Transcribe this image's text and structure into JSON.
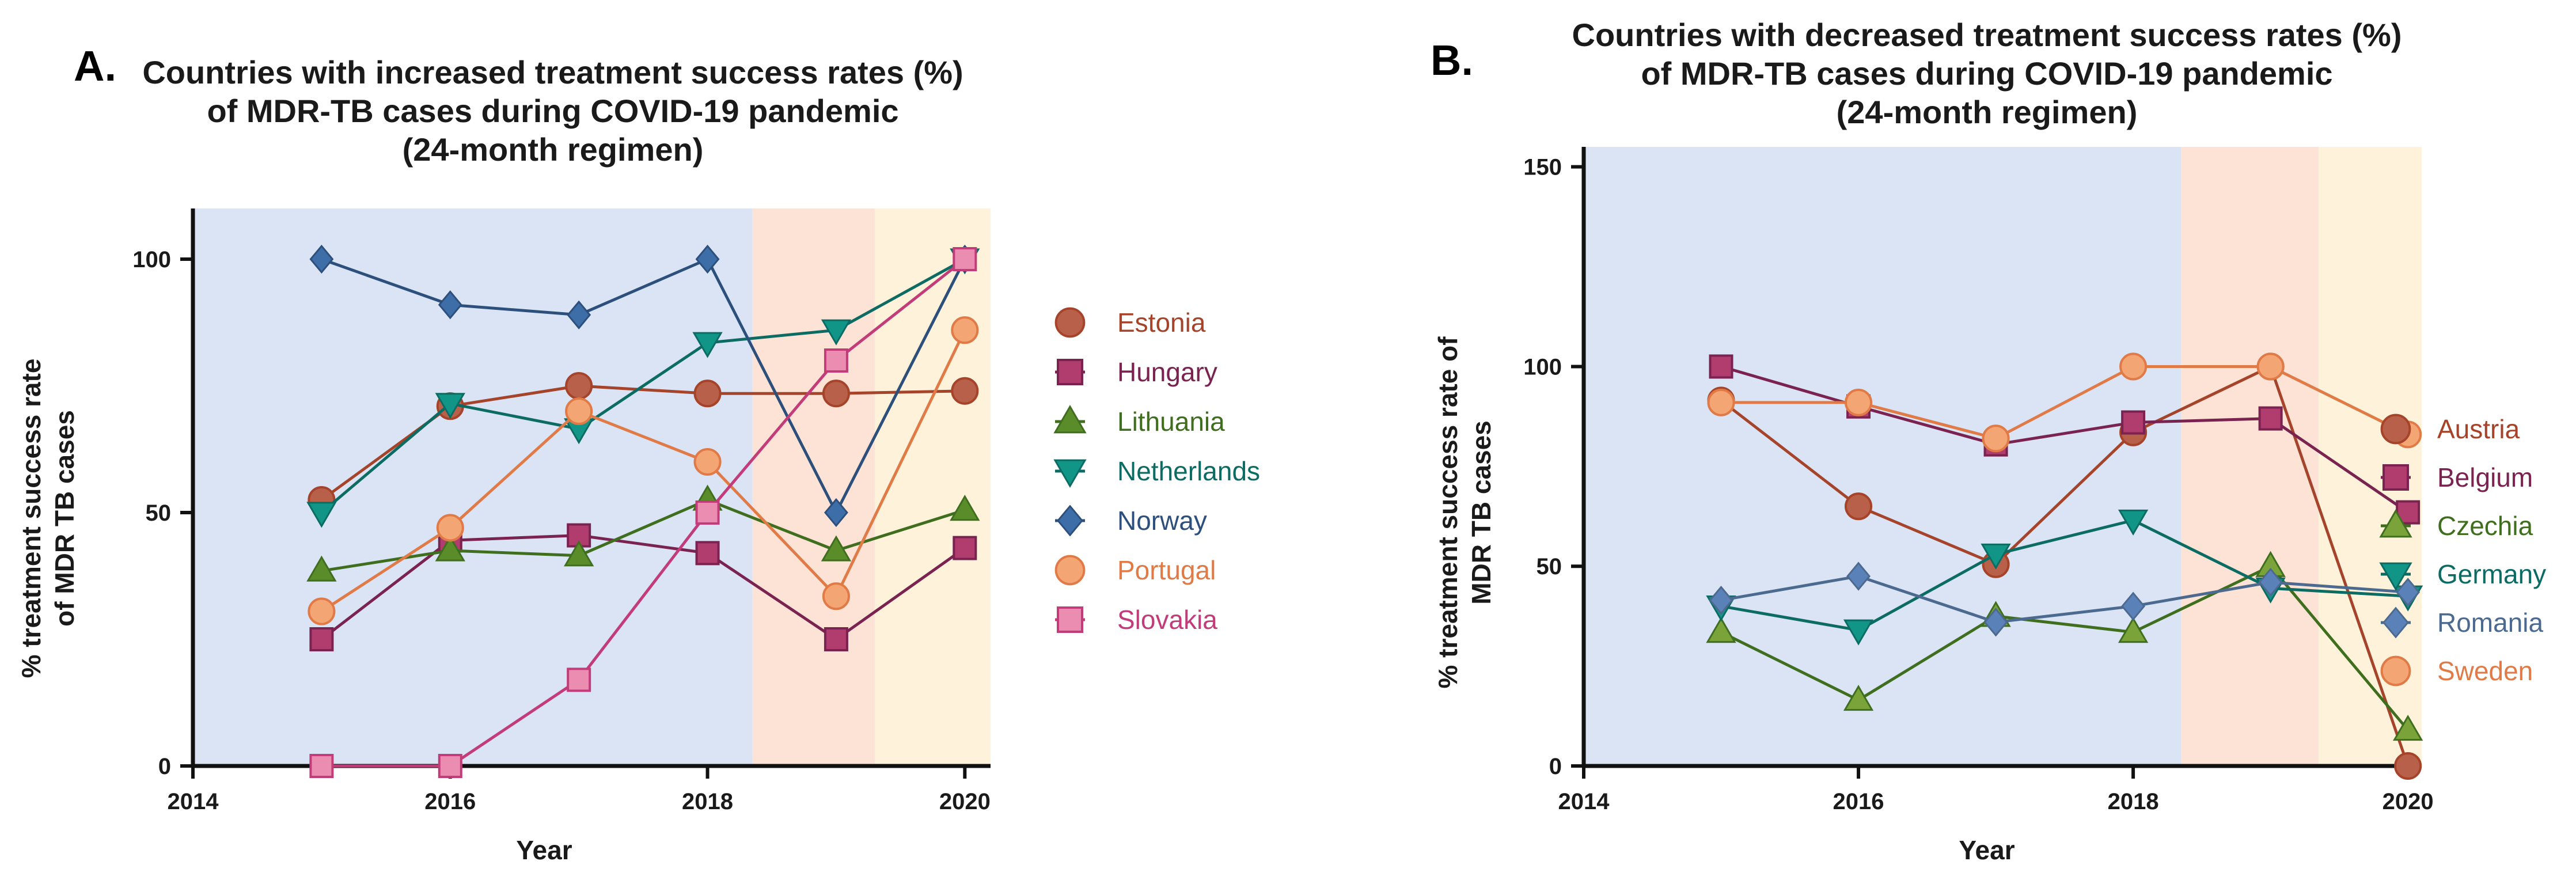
{
  "chart_data": [
    {
      "panel_label": "A.",
      "type": "line",
      "title": [
        "Countries with increased treatment success rates (%)",
        "of MDR-TB cases during COVID-19 pandemic",
        "(24-month regimen)"
      ],
      "xlabel": "Year",
      "ylabel": [
        "% treatment success rate",
        "of MDR TB cases"
      ],
      "xlim": [
        2014,
        2020.2
      ],
      "ylim": [
        0,
        110
      ],
      "xticks": [
        2014,
        2016,
        2018,
        2020
      ],
      "yticks": [
        0,
        50,
        100
      ],
      "background_bands": [
        {
          "x": [
            2014,
            2018.35
          ],
          "color": "#dae4f5"
        },
        {
          "x": [
            2018.35,
            2019.3
          ],
          "color": "#fde3d6"
        },
        {
          "x": [
            2019.3,
            2020.2
          ],
          "color": "#fef3da"
        }
      ],
      "legend_position": "right",
      "series": [
        {
          "name": "Estonia",
          "color": "#a5442b",
          "marker": "circle",
          "fill": "#b8604a",
          "x": [
            2015,
            2016,
            2017,
            2018,
            2019,
            2020
          ],
          "y": [
            52.5,
            71,
            75,
            73.5,
            73.5,
            74
          ]
        },
        {
          "name": "Hungary",
          "color": "#7a2350",
          "marker": "square",
          "fill": "#b13c6e",
          "x": [
            2015,
            2016,
            2017,
            2018,
            2019,
            2020
          ],
          "y": [
            25,
            44.5,
            45.5,
            42,
            25,
            43
          ]
        },
        {
          "name": "Lithuania",
          "color": "#3f6e1e",
          "marker": "triangle-up",
          "fill": "#5b8c2a",
          "x": [
            2015,
            2016,
            2017,
            2018,
            2019,
            2020
          ],
          "y": [
            38.5,
            42.5,
            41.5,
            52.5,
            42.5,
            50.5
          ]
        },
        {
          "name": "Netherlands",
          "color": "#0c6c63",
          "marker": "triangle-down",
          "fill": "#109587",
          "x": [
            2015,
            2016,
            2017,
            2018,
            2019,
            2020
          ],
          "y": [
            50,
            71.5,
            66.5,
            83.5,
            86,
            100
          ]
        },
        {
          "name": "Norway",
          "color": "#2d4f7c",
          "marker": "diamond",
          "fill": "#3e6ea8",
          "x": [
            2015,
            2016,
            2017,
            2018,
            2019,
            2020
          ],
          "y": [
            100,
            91,
            89,
            100,
            50,
            100
          ]
        },
        {
          "name": "Portugal",
          "color": "#e07a47",
          "marker": "circle",
          "fill": "#f4a574",
          "x": [
            2015,
            2016,
            2017,
            2018,
            2019,
            2020
          ],
          "y": [
            30.5,
            47,
            70,
            60,
            33.5,
            86
          ]
        },
        {
          "name": "Slovakia",
          "color": "#c33c7a",
          "marker": "square",
          "fill": "#eb8db0",
          "x": [
            2015,
            2016,
            2017,
            2018,
            2019,
            2020
          ],
          "y": [
            0,
            0,
            17,
            50,
            80,
            100
          ]
        }
      ]
    },
    {
      "panel_label": "B.",
      "type": "line",
      "title": [
        "Countries with decreased treatment success rates (%)",
        "of MDR-TB cases during COVID-19 pandemic",
        "(24-month regimen)"
      ],
      "xlabel": "Year",
      "ylabel": [
        "% treatment success rate of",
        "MDR TB cases"
      ],
      "xlim": [
        2014,
        2020.1
      ],
      "ylim": [
        0,
        155
      ],
      "xticks": [
        2014,
        2016,
        2018,
        2020
      ],
      "yticks": [
        0,
        50,
        100,
        150
      ],
      "background_bands": [
        {
          "x": [
            2014,
            2018.35
          ],
          "color": "#dae4f5"
        },
        {
          "x": [
            2018.35,
            2019.35
          ],
          "color": "#fde3d6"
        },
        {
          "x": [
            2019.35,
            2020.1
          ],
          "color": "#fef3da"
        }
      ],
      "legend_position": "right",
      "series": [
        {
          "name": "Austria",
          "color": "#a5442b",
          "marker": "circle",
          "fill": "#b8604a",
          "x": [
            2015,
            2016,
            2017,
            2018,
            2019,
            2020
          ],
          "y": [
            91.5,
            65,
            50.5,
            83.5,
            100,
            0
          ]
        },
        {
          "name": "Belgium",
          "color": "#7a2350",
          "marker": "square",
          "fill": "#b13c6e",
          "x": [
            2015,
            2016,
            2017,
            2018,
            2019,
            2020
          ],
          "y": [
            100,
            90,
            80.5,
            86,
            87,
            63.5
          ]
        },
        {
          "name": "Czechia",
          "color": "#3f6e1e",
          "marker": "triangle-up",
          "fill": "#7aa33a",
          "x": [
            2015,
            2016,
            2017,
            2018,
            2019,
            2020
          ],
          "y": [
            33.5,
            16.5,
            37.5,
            33.5,
            50,
            9
          ]
        },
        {
          "name": "Germany",
          "color": "#0c6c63",
          "marker": "triangle-down",
          "fill": "#109587",
          "x": [
            2015,
            2016,
            2017,
            2018,
            2019,
            2020
          ],
          "y": [
            40,
            34,
            53,
            61.5,
            44.5,
            42.5
          ]
        },
        {
          "name": "Romania",
          "color": "#4c6a8f",
          "marker": "diamond",
          "fill": "#5b82b8",
          "x": [
            2015,
            2016,
            2017,
            2018,
            2019,
            2020
          ],
          "y": [
            41.5,
            47.5,
            36,
            40,
            46,
            43.5
          ]
        },
        {
          "name": "Sweden",
          "color": "#e07a47",
          "marker": "circle",
          "fill": "#f4a574",
          "x": [
            2015,
            2016,
            2017,
            2018,
            2019,
            2020
          ],
          "y": [
            91,
            91,
            82,
            100,
            100,
            83
          ]
        }
      ]
    }
  ]
}
